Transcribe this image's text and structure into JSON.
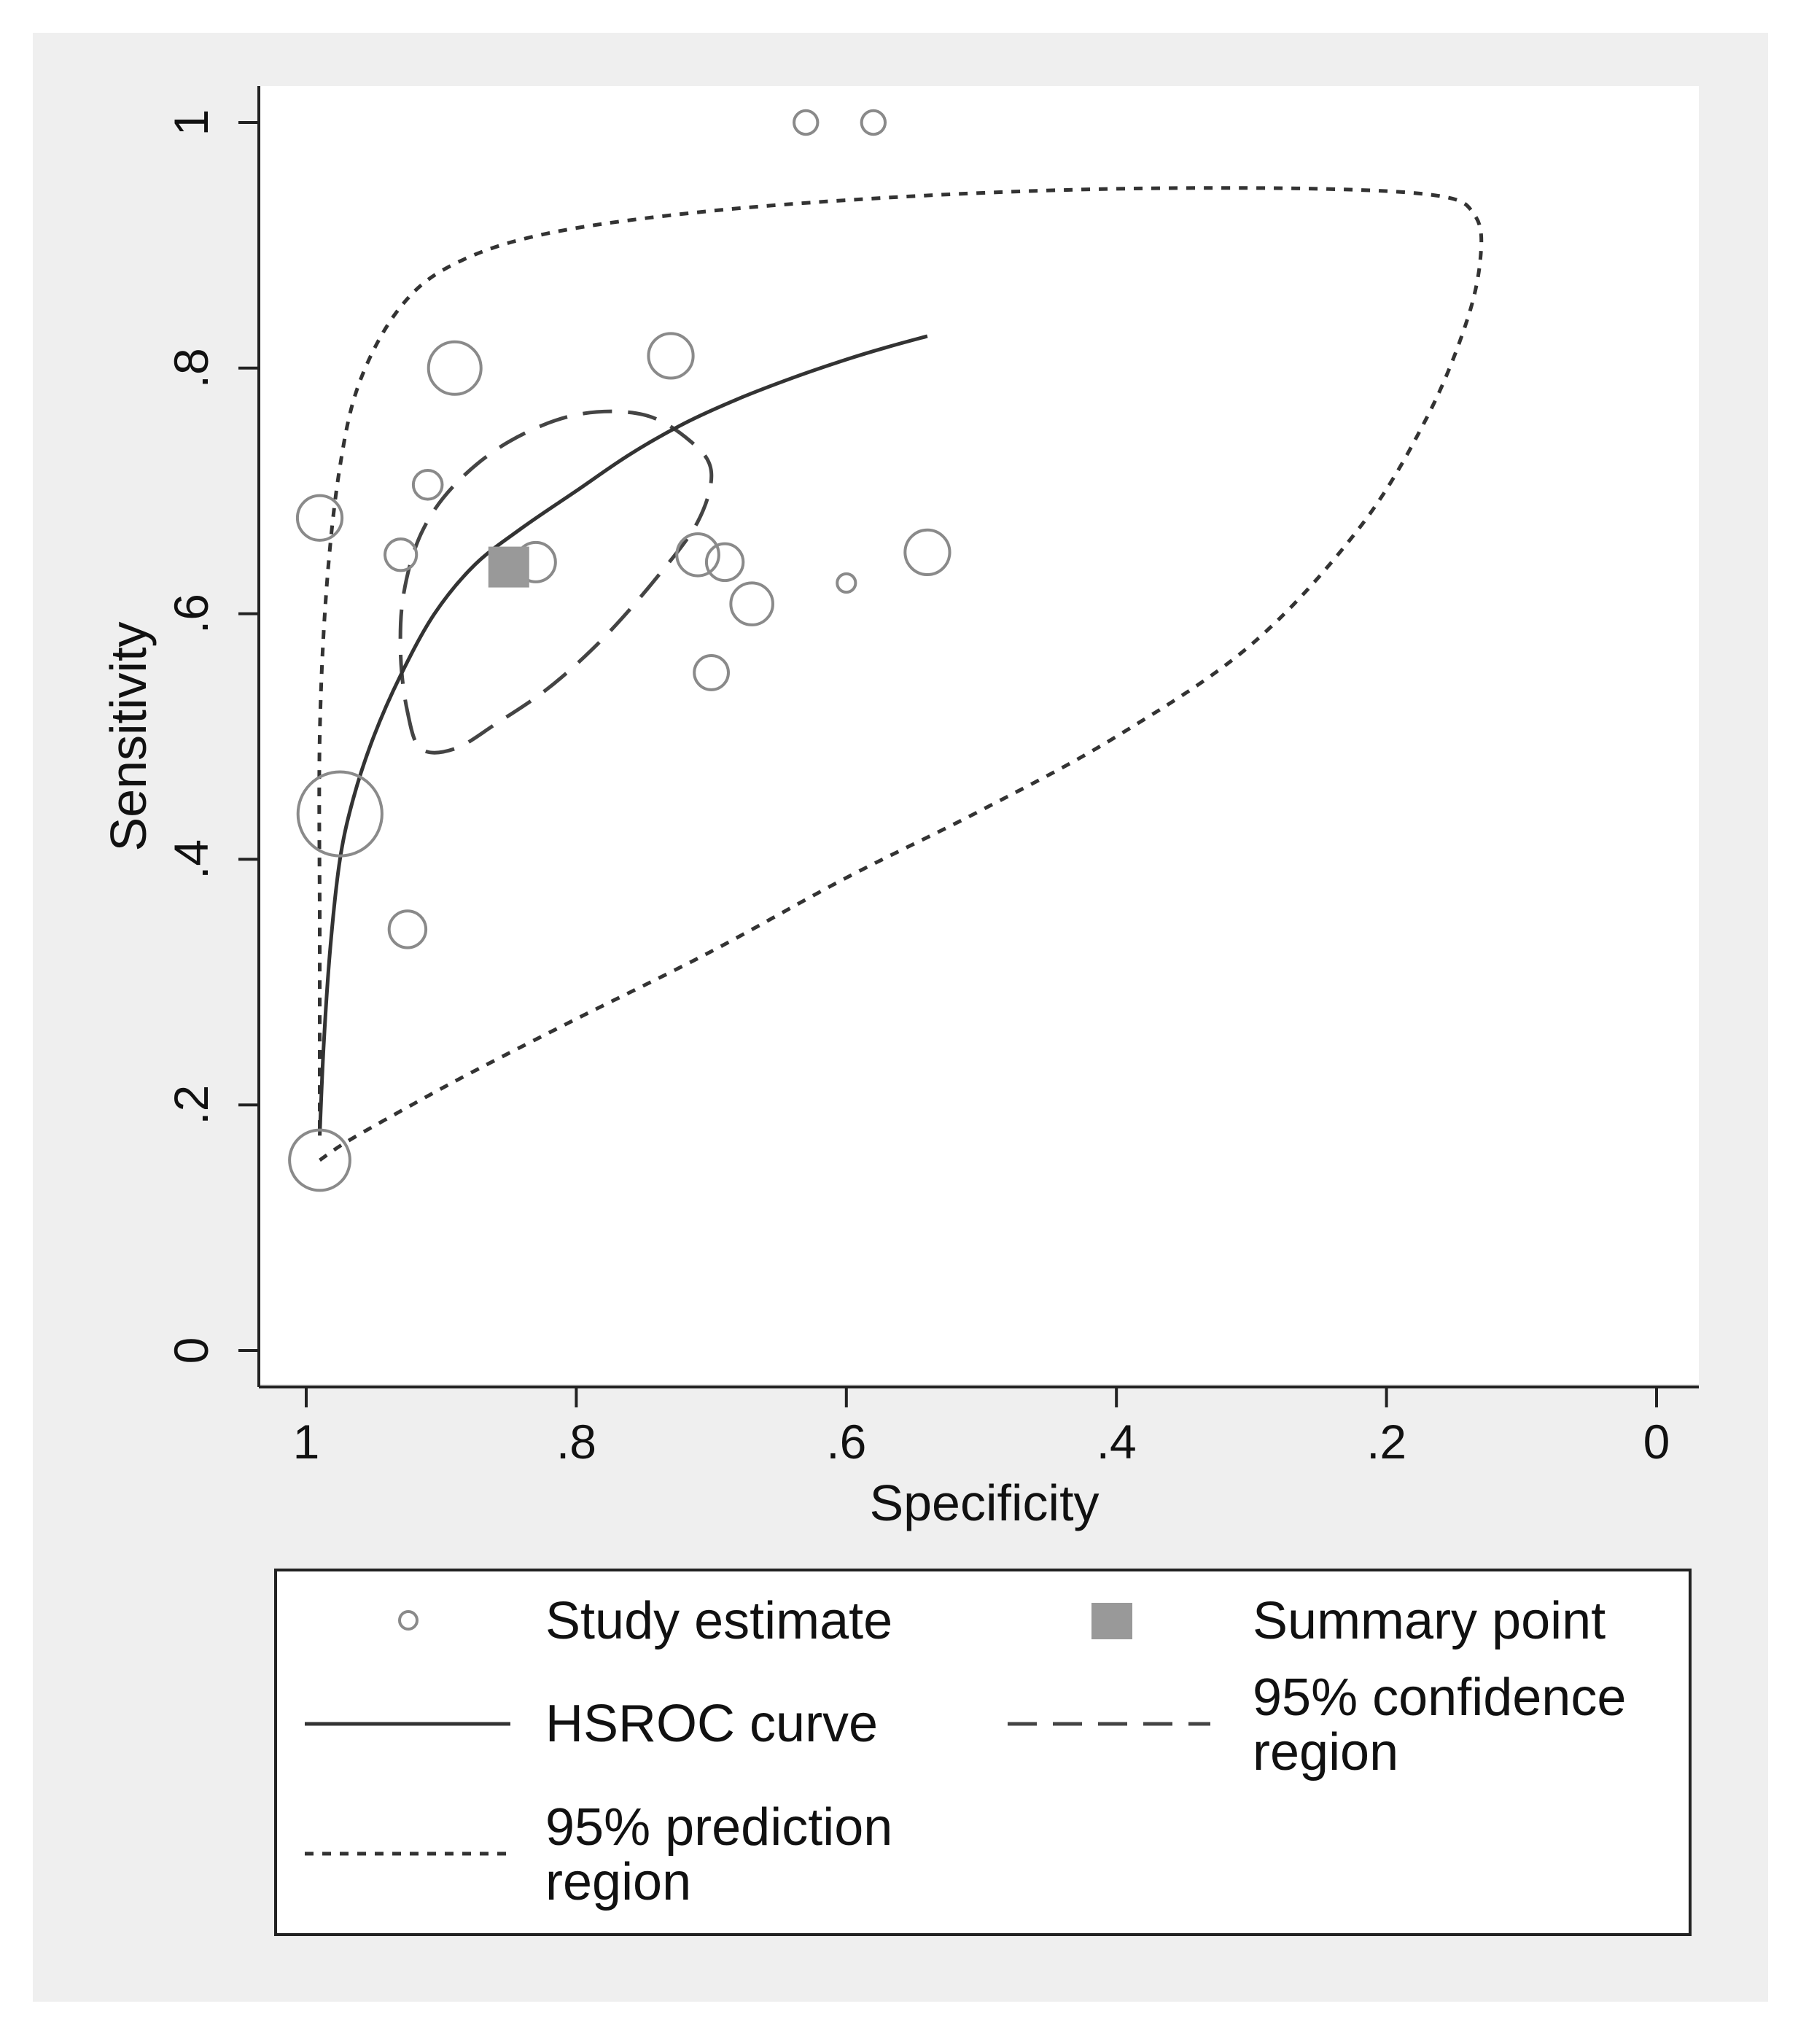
{
  "chart_data": {
    "type": "scatter",
    "subtype": "HSROC summary ROC plot",
    "title": "",
    "xlabel": "Specificity",
    "ylabel": "Sensitivity",
    "xlim": [
      1,
      0
    ],
    "ylim": [
      0,
      1
    ],
    "x_reversed": true,
    "x_ticks": [
      {
        "value": 1,
        "label": "1"
      },
      {
        "value": 0.8,
        "label": ".8"
      },
      {
        "value": 0.6,
        "label": ".6"
      },
      {
        "value": 0.4,
        "label": ".4"
      },
      {
        "value": 0.2,
        "label": ".2"
      },
      {
        "value": 0,
        "label": "0"
      }
    ],
    "y_ticks": [
      {
        "value": 0,
        "label": "0"
      },
      {
        "value": 0.2,
        "label": ".2"
      },
      {
        "value": 0.4,
        "label": ".4"
      },
      {
        "value": 0.6,
        "label": ".6"
      },
      {
        "value": 0.8,
        "label": ".8"
      },
      {
        "value": 1,
        "label": "1"
      }
    ],
    "grid": false,
    "legend_position": "bottom",
    "studies": [
      {
        "specificity": 0.63,
        "sensitivity": 1.0,
        "weight": 0.45
      },
      {
        "specificity": 0.58,
        "sensitivity": 1.0,
        "weight": 0.45
      },
      {
        "specificity": 0.89,
        "sensitivity": 0.8,
        "weight": 1.0
      },
      {
        "specificity": 0.73,
        "sensitivity": 0.81,
        "weight": 0.85
      },
      {
        "specificity": 0.91,
        "sensitivity": 0.705,
        "weight": 0.55
      },
      {
        "specificity": 0.99,
        "sensitivity": 0.678,
        "weight": 0.85
      },
      {
        "specificity": 0.93,
        "sensitivity": 0.648,
        "weight": 0.6
      },
      {
        "specificity": 0.83,
        "sensitivity": 0.642,
        "weight": 0.75
      },
      {
        "specificity": 0.71,
        "sensitivity": 0.648,
        "weight": 0.8
      },
      {
        "specificity": 0.69,
        "sensitivity": 0.642,
        "weight": 0.7
      },
      {
        "specificity": 0.67,
        "sensitivity": 0.608,
        "weight": 0.8
      },
      {
        "specificity": 0.6,
        "sensitivity": 0.625,
        "weight": 0.35
      },
      {
        "specificity": 0.54,
        "sensitivity": 0.65,
        "weight": 0.85
      },
      {
        "specificity": 0.7,
        "sensitivity": 0.552,
        "weight": 0.65
      },
      {
        "specificity": 0.975,
        "sensitivity": 0.437,
        "weight": 1.6
      },
      {
        "specificity": 0.925,
        "sensitivity": 0.343,
        "weight": 0.7
      },
      {
        "specificity": 0.99,
        "sensitivity": 0.155,
        "weight": 1.15
      }
    ],
    "summary_point": {
      "specificity": 0.85,
      "sensitivity": 0.638
    },
    "hsroc_curve": [
      [
        0.99,
        0.175
      ],
      [
        0.987,
        0.25
      ],
      [
        0.982,
        0.33
      ],
      [
        0.975,
        0.4
      ],
      [
        0.965,
        0.45
      ],
      [
        0.95,
        0.5
      ],
      [
        0.93,
        0.55
      ],
      [
        0.905,
        0.6
      ],
      [
        0.875,
        0.64
      ],
      [
        0.84,
        0.67
      ],
      [
        0.8,
        0.7
      ],
      [
        0.76,
        0.73
      ],
      [
        0.72,
        0.755
      ],
      [
        0.68,
        0.775
      ],
      [
        0.64,
        0.792
      ],
      [
        0.6,
        0.807
      ],
      [
        0.57,
        0.817
      ],
      [
        0.54,
        0.826
      ]
    ],
    "confidence_region": [
      [
        0.925,
        0.52
      ],
      [
        0.915,
        0.49
      ],
      [
        0.89,
        0.49
      ],
      [
        0.86,
        0.51
      ],
      [
        0.82,
        0.54
      ],
      [
        0.78,
        0.58
      ],
      [
        0.74,
        0.63
      ],
      [
        0.71,
        0.675
      ],
      [
        0.7,
        0.715
      ],
      [
        0.715,
        0.74
      ],
      [
        0.75,
        0.762
      ],
      [
        0.8,
        0.762
      ],
      [
        0.85,
        0.74
      ],
      [
        0.89,
        0.705
      ],
      [
        0.915,
        0.665
      ],
      [
        0.928,
        0.615
      ],
      [
        0.93,
        0.565
      ]
    ],
    "prediction_region": [
      [
        0.99,
        0.155
      ],
      [
        0.97,
        0.17
      ],
      [
        0.93,
        0.195
      ],
      [
        0.88,
        0.225
      ],
      [
        0.8,
        0.27
      ],
      [
        0.7,
        0.325
      ],
      [
        0.6,
        0.385
      ],
      [
        0.5,
        0.44
      ],
      [
        0.4,
        0.5
      ],
      [
        0.3,
        0.575
      ],
      [
        0.22,
        0.67
      ],
      [
        0.17,
        0.76
      ],
      [
        0.14,
        0.84
      ],
      [
        0.13,
        0.895
      ],
      [
        0.135,
        0.925
      ],
      [
        0.16,
        0.94
      ],
      [
        0.25,
        0.946
      ],
      [
        0.4,
        0.946
      ],
      [
        0.55,
        0.94
      ],
      [
        0.7,
        0.928
      ],
      [
        0.82,
        0.91
      ],
      [
        0.89,
        0.885
      ],
      [
        0.93,
        0.85
      ],
      [
        0.96,
        0.79
      ],
      [
        0.975,
        0.72
      ],
      [
        0.985,
        0.62
      ],
      [
        0.99,
        0.5
      ],
      [
        0.99,
        0.35
      ],
      [
        0.99,
        0.25
      ],
      [
        0.99,
        0.175
      ]
    ]
  },
  "legend": {
    "study_estimate": "Study estimate",
    "summary_point": "Summary point",
    "hsroc_curve": "HSROC curve",
    "confidence_region_line1": "95% confidence",
    "confidence_region_line2": "region",
    "prediction_region_line1": "95% prediction",
    "prediction_region_line2": "region"
  },
  "colors": {
    "outer_background": "#efefef",
    "plot_background": "#ffffff",
    "axis": "#222222",
    "marker_stroke": "#8a8a8a",
    "summary_fill": "#999999",
    "curve": "#333333"
  }
}
